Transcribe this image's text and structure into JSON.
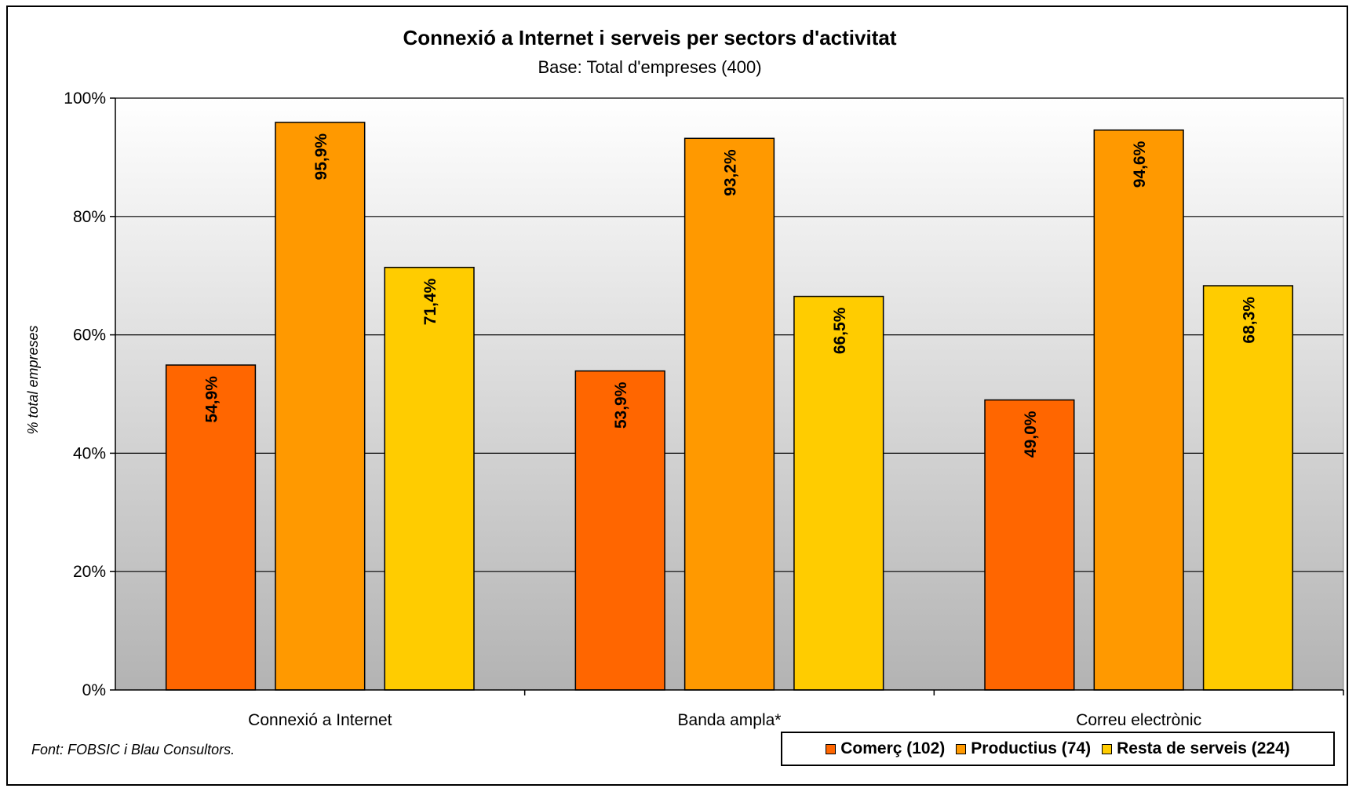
{
  "chart_data": {
    "type": "bar",
    "title": "Connexió a Internet i serveis per sectors d'activitat",
    "subtitle": "Base: Total d'empreses (400)",
    "ylabel": "% total empreses",
    "xlabel": "",
    "ylim": [
      0,
      100
    ],
    "y_ticks": [
      "0%",
      "20%",
      "40%",
      "60%",
      "80%",
      "100%"
    ],
    "grid": true,
    "categories": [
      "Connexió a Internet",
      "Banda ampla*",
      "Correu electrònic"
    ],
    "series": [
      {
        "name": "Comerç (102)",
        "color": "#ff6600",
        "values": [
          54.9,
          53.9,
          49.0
        ],
        "labels": [
          "54,9%",
          "53,9%",
          "49,0%"
        ]
      },
      {
        "name": "Productius (74)",
        "color": "#ff9900",
        "values": [
          95.9,
          93.2,
          94.6
        ],
        "labels": [
          "95,9%",
          "93,2%",
          "94,6%"
        ]
      },
      {
        "name": "Resta de serveis (224)",
        "color": "#ffcc00",
        "values": [
          71.4,
          66.5,
          68.3
        ],
        "labels": [
          "71,4%",
          "66,5%",
          "68,3%"
        ]
      }
    ],
    "legend_position": "bottom-right",
    "source": "Font: FOBSIC i Blau Consultors."
  }
}
